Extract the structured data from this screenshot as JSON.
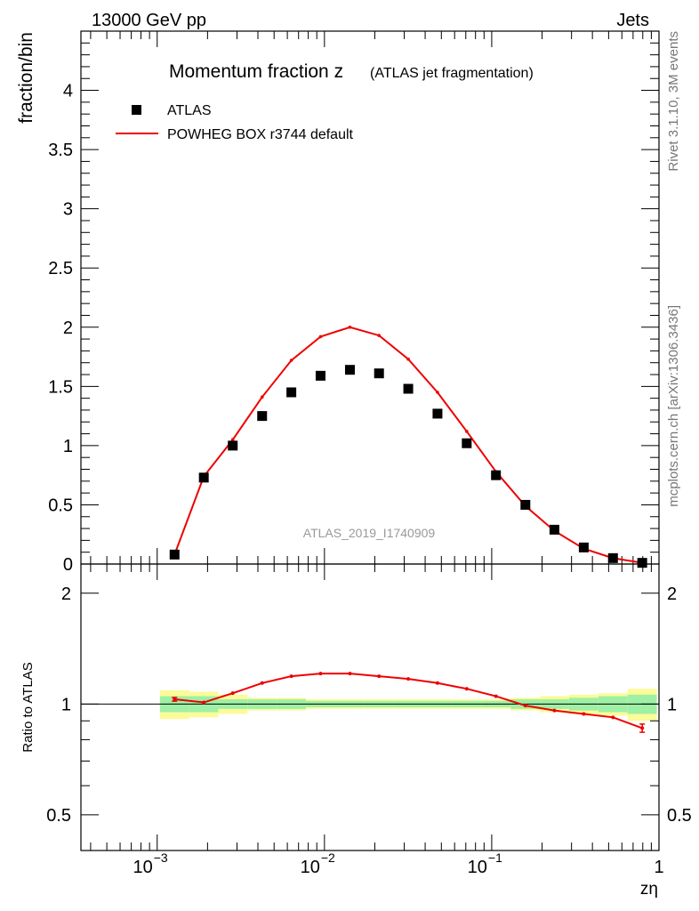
{
  "header": {
    "left": "13000 GeV pp",
    "right": "Jets"
  },
  "side_text": {
    "rivet": "Rivet 3.1.10,  3M events",
    "mcplots": "mcplots.cern.ch [arXiv:1306.3436]"
  },
  "chart_data": {
    "type": "scatter",
    "title_main": "Momentum fraction z",
    "title_sub": "(ATLAS jet fragmentation)",
    "ylabel": "fraction/bin",
    "ratio_ylabel": "Ratio to ATLAS",
    "xlabel": "zη",
    "xscale": "log",
    "xlim": [
      0.00035,
      1
    ],
    "ylim": [
      0,
      4.5
    ],
    "ratio_ylim": [
      0.4,
      2.4
    ],
    "watermark": "ATLAS_2019_I1740909",
    "legend": [
      "ATLAS",
      "POWHEG BOX r3744 default"
    ],
    "legend_position": "top-left",
    "x_tick_labels": [
      {
        "base": "10",
        "exp": "−3"
      },
      {
        "base": "10",
        "exp": "−2"
      },
      {
        "base": "10",
        "exp": "−1"
      },
      {
        "base": "1",
        "exp": ""
      }
    ],
    "y_ticks": [
      0,
      0.5,
      1,
      1.5,
      2,
      2.5,
      3,
      3.5,
      4
    ],
    "y_tick_labels": [
      "0",
      "0.5",
      "1",
      "1.5",
      "2",
      "2.5",
      "3",
      "3.5",
      "4"
    ],
    "ratio_ticks": [
      0.5,
      1,
      2
    ],
    "ratio_tick_labels": [
      "0.5",
      "1",
      "2"
    ],
    "x": [
      0.00127,
      0.0019,
      0.00283,
      0.00424,
      0.00634,
      0.00948,
      0.0142,
      0.0212,
      0.0317,
      0.0474,
      0.0709,
      0.106,
      0.159,
      0.237,
      0.355,
      0.531,
      0.794
    ],
    "series": [
      {
        "name": "ATLAS",
        "color": "#000000",
        "values": [
          0.08,
          0.73,
          1.0,
          1.25,
          1.45,
          1.59,
          1.64,
          1.61,
          1.48,
          1.27,
          1.02,
          0.75,
          0.5,
          0.29,
          0.14,
          0.05,
          0.01
        ]
      },
      {
        "name": "POWHEG BOX r3744 default",
        "color": "#ee0000",
        "values": [
          0.08,
          0.74,
          1.05,
          1.41,
          1.72,
          1.92,
          2.0,
          1.93,
          1.73,
          1.45,
          1.12,
          0.78,
          0.49,
          0.28,
          0.13,
          0.05,
          0.01
        ]
      }
    ],
    "ratio": [
      1.03,
      1.01,
      1.07,
      1.14,
      1.19,
      1.21,
      1.21,
      1.19,
      1.17,
      1.14,
      1.1,
      1.05,
      0.99,
      0.96,
      0.94,
      0.92,
      0.86
    ],
    "ratio_band_inner": [
      0.05,
      0.05,
      0.03,
      0.03,
      0.03,
      0.02,
      0.02,
      0.02,
      0.02,
      0.02,
      0.02,
      0.02,
      0.03,
      0.03,
      0.04,
      0.05,
      0.06
    ],
    "ratio_band_outer": [
      0.09,
      0.08,
      0.06,
      0.04,
      0.04,
      0.03,
      0.03,
      0.03,
      0.03,
      0.03,
      0.03,
      0.03,
      0.04,
      0.05,
      0.06,
      0.07,
      0.1
    ],
    "colors": {
      "band_inner": "#9ef0a4",
      "band_outer": "#fbfb99",
      "axis": "#000000"
    }
  }
}
